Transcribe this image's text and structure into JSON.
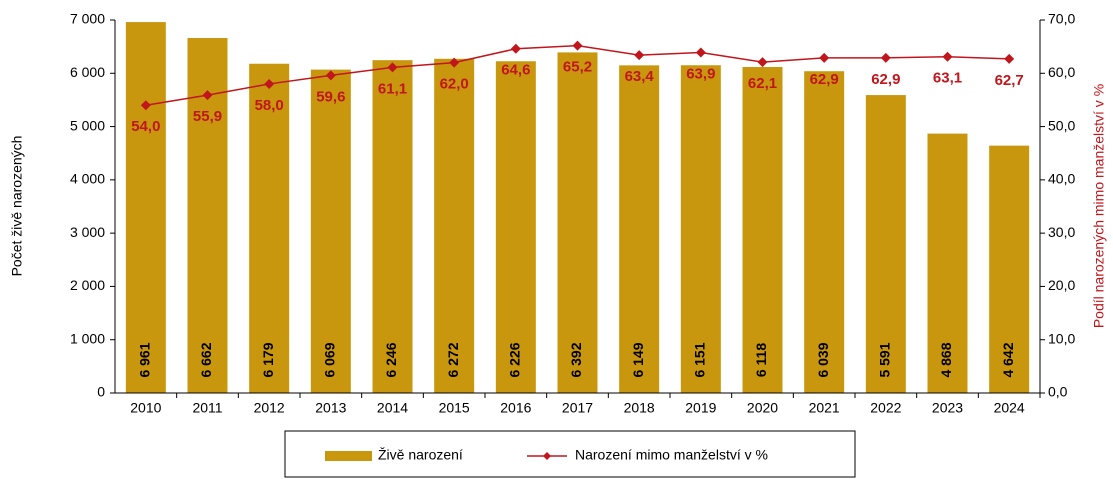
{
  "chart_data": {
    "type": "bar",
    "categories": [
      "2010",
      "2011",
      "2012",
      "2013",
      "2014",
      "2015",
      "2016",
      "2017",
      "2018",
      "2019",
      "2020",
      "2021",
      "2022",
      "2023",
      "2024"
    ],
    "series": [
      {
        "name": "Živě narození",
        "type": "bar",
        "color": "#c9970e",
        "values": [
          6961,
          6662,
          6179,
          6069,
          6246,
          6272,
          6226,
          6392,
          6149,
          6151,
          6118,
          6039,
          5591,
          4868,
          4642
        ],
        "value_labels": [
          "6 961",
          "6 662",
          "6 179",
          "6 069",
          "6 246",
          "6 272",
          "6 226",
          "6 392",
          "6 149",
          "6 151",
          "6 118",
          "6 039",
          "5 591",
          "4 868",
          "4 642"
        ]
      },
      {
        "name": "Narození mimo manželství v %",
        "type": "line",
        "axis": "y2",
        "color": "#c0161c",
        "values": [
          54.0,
          55.9,
          58.0,
          59.6,
          61.1,
          62.0,
          64.6,
          65.2,
          63.4,
          63.9,
          62.1,
          62.9,
          62.9,
          63.1,
          62.7
        ],
        "value_labels": [
          "54,0",
          "55,9",
          "58,0",
          "59,6",
          "61,1",
          "62,0",
          "64,6",
          "65,2",
          "63,4",
          "63,9",
          "62,1",
          "62,9",
          "62,9",
          "63,1",
          "62,7"
        ]
      }
    ],
    "ylabel": "Počet živě narozených",
    "y2label": "Podíl narozených mimo manželství v %",
    "ylim": [
      0,
      7000
    ],
    "yticks": [
      0,
      {
        "value": 1000,
        "label": "1 000"
      },
      {
        "value": 2000,
        "label": "2 000"
      },
      {
        "value": 3000,
        "label": "3 000"
      },
      {
        "value": 4000,
        "label": "4 000"
      },
      {
        "value": 5000,
        "label": "5 000"
      },
      {
        "value": 6000,
        "label": "6 000"
      },
      {
        "value": 7000,
        "label": "7 000"
      }
    ],
    "y2lim": [
      0,
      70
    ],
    "y2ticks": [
      {
        "value": 0,
        "label": "0,0"
      },
      {
        "value": 10,
        "label": "10,0"
      },
      {
        "value": 20,
        "label": "20,0"
      },
      {
        "value": 30,
        "label": "30,0"
      },
      {
        "value": 40,
        "label": "40,0"
      },
      {
        "value": 50,
        "label": "50,0"
      },
      {
        "value": 60,
        "label": "60,0"
      },
      {
        "value": 70,
        "label": "70,0"
      }
    ],
    "legend": "bottom"
  }
}
